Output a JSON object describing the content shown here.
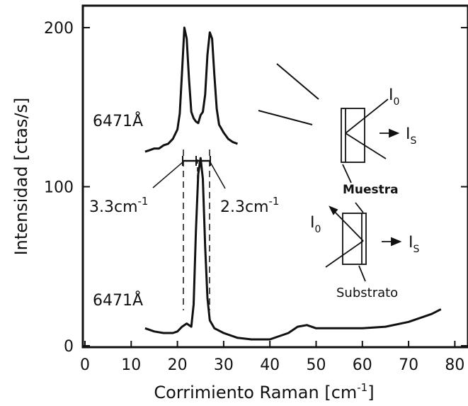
{
  "chart_data": {
    "type": "line",
    "xlabel": "Corrimiento Raman [cm",
    "xlabel_sup": "-1",
    "xlabel_suffix": "]",
    "ylabel": "Intensidad [ctas/s]",
    "xlim": [
      0,
      80
    ],
    "ylim": [
      0,
      210
    ],
    "x_ticks": [
      "0",
      "10",
      "20",
      "30",
      "40",
      "50",
      "60",
      "70",
      "80"
    ],
    "y_ticks": [
      "0",
      "100",
      "200"
    ],
    "grid": false,
    "series": [
      {
        "x": [
          13,
          14,
          15,
          16,
          17,
          18,
          19,
          20,
          20.5,
          21,
          21.5,
          22,
          22.5,
          23,
          23.5,
          24,
          24.5,
          25,
          25.5,
          26,
          26.5,
          27,
          27.5,
          28,
          28.5,
          29,
          30,
          31,
          32,
          33
        ],
        "y": [
          122,
          123,
          124,
          124,
          126,
          127,
          130,
          136,
          146,
          172,
          200,
          193,
          168,
          147,
          143,
          141,
          140,
          145,
          147,
          158,
          183,
          197,
          193,
          170,
          149,
          139,
          134,
          130,
          128,
          127
        ]
      },
      {
        "x": [
          13,
          15,
          17,
          19,
          20,
          21,
          22,
          23,
          23.5,
          24,
          24.5,
          25,
          25.5,
          26,
          26.5,
          27,
          28,
          30,
          33,
          36,
          40,
          44,
          46,
          48,
          50,
          55,
          60,
          65,
          70,
          75,
          77
        ],
        "y": [
          11,
          9,
          8,
          8,
          9,
          12,
          14,
          12,
          26,
          72,
          108,
          118,
          105,
          62,
          30,
          16,
          11,
          8,
          5,
          4,
          4,
          8,
          12,
          13,
          11,
          11,
          11,
          12,
          15,
          20,
          23
        ]
      }
    ],
    "annotations": {
      "upper_wavelength": "6471",
      "lower_wavelength": "6471",
      "angstrom": "Å",
      "width_left": "3.3cm",
      "width_right": "2.3cm",
      "width_sup": "-1",
      "io_top": "I",
      "io_top_sub": "0",
      "is_top": "I",
      "is_top_sub": "S",
      "muestra": "Muestra",
      "io_bottom": "I",
      "io_bottom_sub": "0",
      "is_bottom": "I",
      "is_bottom_sub": "S",
      "substrato": "Substrato"
    }
  }
}
